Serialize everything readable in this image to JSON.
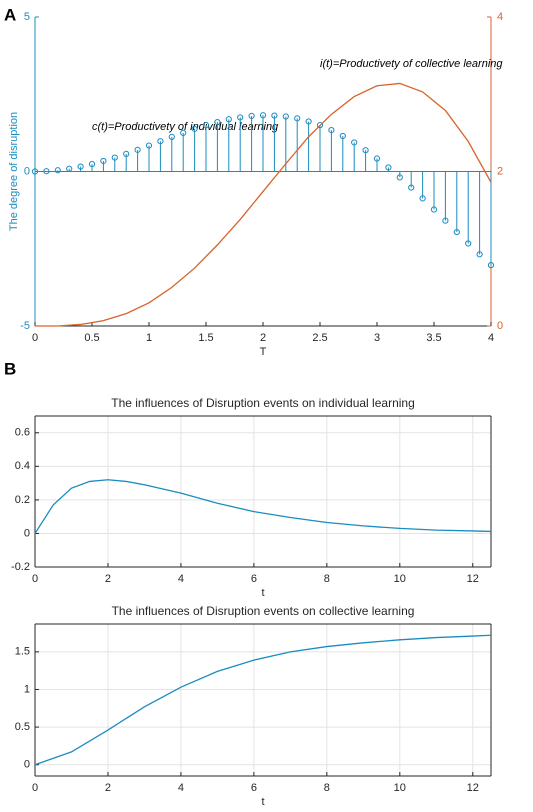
{
  "panel_labels": [
    "A",
    "B"
  ],
  "chart_data": [
    {
      "type": "stem",
      "xlabel": "T",
      "ylabel": "The degree of disruption",
      "annotations": [
        "c(t)=Productivety of individual learning",
        "i(t)=Productivety of collective learning"
      ],
      "xlim": [
        0,
        4
      ],
      "xticks": [
        0,
        0.5,
        1,
        1.5,
        2,
        2.5,
        3,
        3.5,
        4
      ],
      "ylim": [
        -5,
        5
      ],
      "yticks": [
        -5,
        0,
        5
      ],
      "y2lim": [
        0,
        4
      ],
      "y2ticks": [
        0,
        2,
        4
      ],
      "y_axis_color": "#1a8cc0",
      "y2_axis_color": "#d9622b",
      "grid": false,
      "series": [
        {
          "color": "#1a8cc0",
          "x": [
            0,
            0.1,
            0.2,
            0.3,
            0.4,
            0.5,
            0.6,
            0.7,
            0.8,
            0.9,
            1,
            1.1,
            1.2,
            1.3,
            1.4,
            1.5,
            1.6,
            1.7,
            1.8,
            1.9,
            2,
            2.1,
            2.2,
            2.3,
            2.4,
            2.5,
            2.6,
            2.7,
            2.8,
            2.9,
            3,
            3.1,
            3.2,
            3.3,
            3.4,
            3.5,
            3.6,
            3.7,
            3.8,
            3.9,
            4
          ],
          "values": [
            0,
            0.01,
            0.04,
            0.09,
            0.16,
            0.24,
            0.34,
            0.45,
            0.57,
            0.7,
            0.84,
            0.98,
            1.12,
            1.25,
            1.38,
            1.5,
            1.6,
            1.69,
            1.75,
            1.8,
            1.82,
            1.81,
            1.78,
            1.72,
            1.62,
            1.5,
            1.34,
            1.15,
            0.94,
            0.69,
            0.42,
            0.13,
            -0.19,
            -0.52,
            -0.87,
            -1.23,
            -1.59,
            -1.96,
            -2.33,
            -2.68,
            -3.03
          ]
        },
        {
          "type": "line",
          "axis": "y2",
          "color": "#d9622b",
          "x": [
            0,
            0.2,
            0.4,
            0.6,
            0.8,
            1,
            1.2,
            1.4,
            1.6,
            1.8,
            2,
            2.2,
            2.4,
            2.6,
            2.8,
            3,
            3.2,
            3.4,
            3.6,
            3.8,
            4
          ],
          "values": [
            0,
            0,
            0.02,
            0.07,
            0.16,
            0.3,
            0.5,
            0.75,
            1.05,
            1.38,
            1.74,
            2.1,
            2.45,
            2.74,
            2.97,
            3.11,
            3.14,
            3.03,
            2.79,
            2.39,
            1.86
          ]
        }
      ]
    },
    {
      "type": "line",
      "title": "The influences of Disruption events on individual learning",
      "xlabel": "t",
      "xlim": [
        0,
        12.5
      ],
      "xticks": [
        0,
        2,
        4,
        6,
        8,
        10,
        12
      ],
      "ylim": [
        -0.2,
        0.7
      ],
      "yticks": [
        -0.2,
        0,
        0.2,
        0.4,
        0.6
      ],
      "grid": true,
      "series": [
        {
          "color": "#1a8cc0",
          "x": [
            0,
            0.5,
            1,
            1.5,
            2,
            2.5,
            3,
            4,
            5,
            6,
            7,
            8,
            9,
            10,
            11,
            12,
            12.5
          ],
          "values": [
            0,
            0.17,
            0.27,
            0.31,
            0.32,
            0.31,
            0.29,
            0.24,
            0.18,
            0.13,
            0.095,
            0.065,
            0.045,
            0.03,
            0.02,
            0.015,
            0.012
          ]
        }
      ]
    },
    {
      "type": "line",
      "title": "The influences of Disruption events on collective learning",
      "xlabel": "t",
      "xlim": [
        0,
        12.5
      ],
      "xticks": [
        0,
        2,
        4,
        6,
        8,
        10,
        12
      ],
      "ylim": [
        -0.15,
        1.87
      ],
      "yticks": [
        0,
        0.5,
        1,
        1.5
      ],
      "grid": true,
      "series": [
        {
          "color": "#1a8cc0",
          "x": [
            0,
            1,
            2,
            3,
            4,
            5,
            6,
            7,
            8,
            9,
            10,
            11,
            12,
            12.5
          ],
          "values": [
            0,
            0.17,
            0.46,
            0.77,
            1.03,
            1.24,
            1.39,
            1.5,
            1.57,
            1.62,
            1.66,
            1.69,
            1.71,
            1.72
          ]
        }
      ]
    }
  ]
}
